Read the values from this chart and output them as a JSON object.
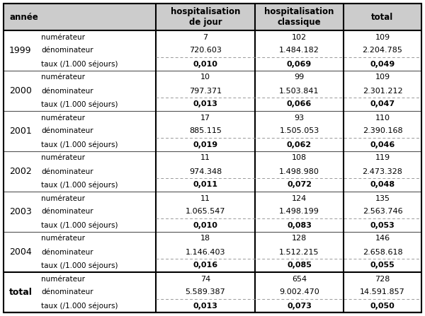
{
  "header_col1": "année",
  "header_col3": "hospitalisation\nde jour",
  "header_col4": "hospitalisation\nclassique",
  "header_col5": "total",
  "rows": [
    {
      "year": "1999",
      "num_jour": "7",
      "num_classique": "102",
      "num_total": "109",
      "den_jour": "720.603",
      "den_classique": "1.484.182",
      "den_total": "2.204.785",
      "taux_jour": "0,010",
      "taux_classique": "0,069",
      "taux_total": "0,049"
    },
    {
      "year": "2000",
      "num_jour": "10",
      "num_classique": "99",
      "num_total": "109",
      "den_jour": "797.371",
      "den_classique": "1.503.841",
      "den_total": "2.301.212",
      "taux_jour": "0,013",
      "taux_classique": "0,066",
      "taux_total": "0,047"
    },
    {
      "year": "2001",
      "num_jour": "17",
      "num_classique": "93",
      "num_total": "110",
      "den_jour": "885.115",
      "den_classique": "1.505.053",
      "den_total": "2.390.168",
      "taux_jour": "0,019",
      "taux_classique": "0,062",
      "taux_total": "0,046"
    },
    {
      "year": "2002",
      "num_jour": "11",
      "num_classique": "108",
      "num_total": "119",
      "den_jour": "974.348",
      "den_classique": "1.498.980",
      "den_total": "2.473.328",
      "taux_jour": "0,011",
      "taux_classique": "0,072",
      "taux_total": "0,048"
    },
    {
      "year": "2003",
      "num_jour": "11",
      "num_classique": "124",
      "num_total": "135",
      "den_jour": "1.065.547",
      "den_classique": "1.498.199",
      "den_total": "2.563.746",
      "taux_jour": "0,010",
      "taux_classique": "0,083",
      "taux_total": "0,053"
    },
    {
      "year": "2004",
      "num_jour": "18",
      "num_classique": "128",
      "num_total": "146",
      "den_jour": "1.146.403",
      "den_classique": "1.512.215",
      "den_total": "2.658.618",
      "taux_jour": "0,016",
      "taux_classique": "0,085",
      "taux_total": "0,055"
    },
    {
      "year": "total",
      "num_jour": "74",
      "num_classique": "654",
      "num_total": "728",
      "den_jour": "5.589.387",
      "den_classique": "9.002.470",
      "den_total": "14.591.857",
      "taux_jour": "0,013",
      "taux_classique": "0,073",
      "taux_total": "0,050"
    }
  ],
  "bg_color": "#ffffff",
  "header_bg": "#cccccc",
  "border_color": "#000000",
  "n_year_rows": 6
}
